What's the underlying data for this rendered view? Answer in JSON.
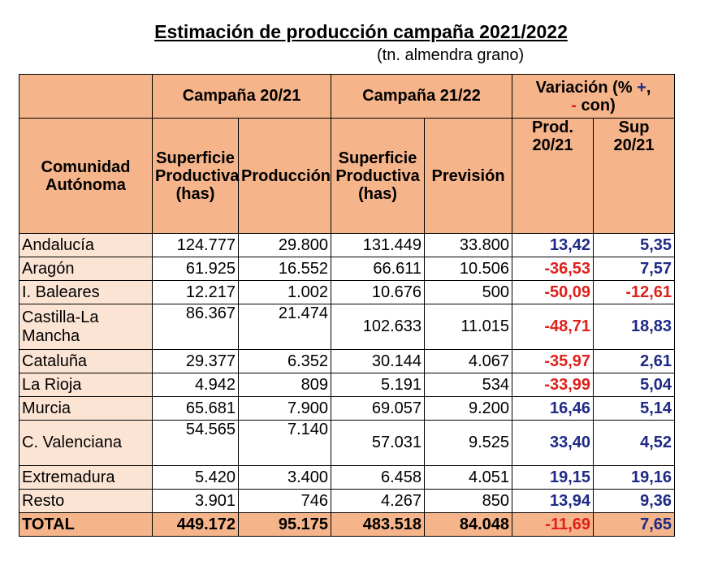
{
  "title": "Estimación de producción campaña 2021/2022",
  "subtitle": "(tn. almendra grano)",
  "header": {
    "comunidad": "Comunidad Autónoma",
    "campana_2021": "Campaña 20/21",
    "campana_2122": "Campaña 21/22",
    "variacion_prefix": "Variación (%",
    "variacion_plus": "+",
    "variacion_comma": ",",
    "variacion_minus": "-",
    "variacion_suffix": "con)",
    "superficie_2021": "Superficie Productiva (has)",
    "produccion_2021": "Producción",
    "superficie_2122": "Superficie Productiva (has)",
    "prevision": "Previsión",
    "prod_var": "Prod. 20/21",
    "sup_var": "Sup 20/21"
  },
  "rows": [
    {
      "region": "Andalucía",
      "sup2021": "124.777",
      "prod2021": "29.800",
      "sup2122": "131.449",
      "prev": "33.800",
      "var_prod": "13,42",
      "var_sup": "5,35"
    },
    {
      "region": "Aragón",
      "sup2021": "61.925",
      "prod2021": "16.552",
      "sup2122": "66.611",
      "prev": "10.506",
      "var_prod": "-36,53",
      "var_sup": "7,57"
    },
    {
      "region": "I. Baleares",
      "sup2021": "12.217",
      "prod2021": "1.002",
      "sup2122": "10.676",
      "prev": "500",
      "var_prod": "-50,09",
      "var_sup": "-12,61"
    },
    {
      "region": "Castilla-La Mancha",
      "sup2021": "86.367",
      "prod2021": "21.474",
      "sup2122": "102.633",
      "prev": "11.015",
      "var_prod": "-48,71",
      "var_sup": "18,83"
    },
    {
      "region": "Cataluña",
      "sup2021": "29.377",
      "prod2021": "6.352",
      "sup2122": "30.144",
      "prev": "4.067",
      "var_prod": "-35,97",
      "var_sup": "2,61"
    },
    {
      "region": "La Rioja",
      "sup2021": "4.942",
      "prod2021": "809",
      "sup2122": "5.191",
      "prev": "534",
      "var_prod": "-33,99",
      "var_sup": "5,04"
    },
    {
      "region": "Murcia",
      "sup2021": "65.681",
      "prod2021": "7.900",
      "sup2122": "69.057",
      "prev": "9.200",
      "var_prod": "16,46",
      "var_sup": "5,14"
    },
    {
      "region": "C. Valenciana",
      "sup2021": "54.565",
      "prod2021": "7.140",
      "sup2122": "57.031",
      "prev": "9.525",
      "var_prod": "33,40",
      "var_sup": "4,52"
    },
    {
      "region": "Extremadura",
      "sup2021": "5.420",
      "prod2021": "3.400",
      "sup2122": "6.458",
      "prev": "4.051",
      "var_prod": "19,15",
      "var_sup": "19,16"
    },
    {
      "region": "Resto",
      "sup2021": "3.901",
      "prod2021": "746",
      "sup2122": "4.267",
      "prev": "850",
      "var_prod": "13,94",
      "var_sup": "9,36"
    }
  ],
  "total": {
    "region": "TOTAL",
    "sup2021": "449.172",
    "prod2021": "95.175",
    "sup2122": "483.518",
    "prev": "84.048",
    "var_prod": "-11,69",
    "var_sup": "7,65"
  },
  "colors": {
    "header_bg": "#f5b48a",
    "label_bg": "#fce4d4",
    "negative": "#e0201a",
    "positive": "#1e2a86"
  }
}
